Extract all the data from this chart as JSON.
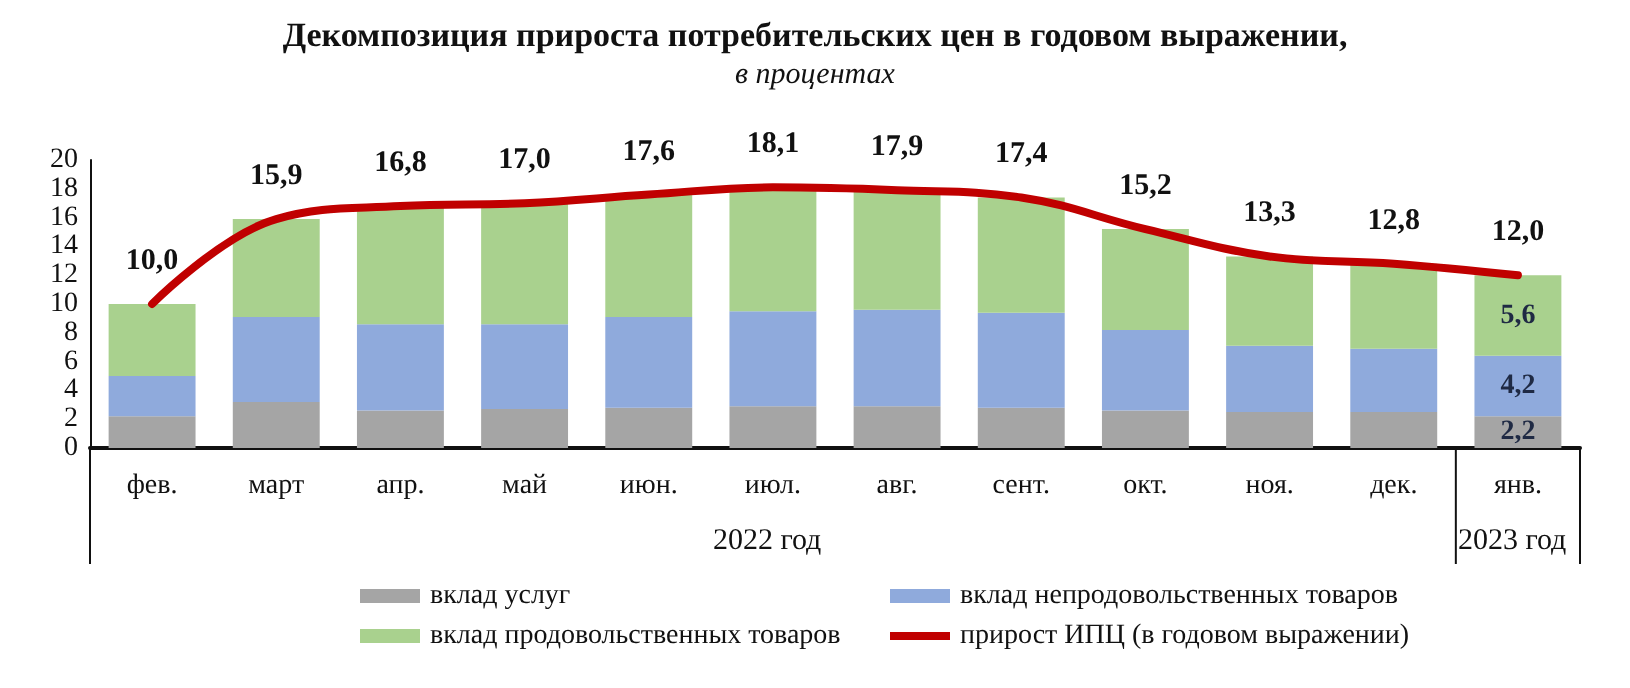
{
  "chart_data": {
    "type": "bar",
    "title": "Декомпозиция прироста потребительских цен в годовом выражении,",
    "subtitle": "в процентах",
    "categories": [
      "фев.",
      "март",
      "апр.",
      "май",
      "июн.",
      "июл.",
      "авг.",
      "сент.",
      "окт.",
      "ноя.",
      "дек.",
      "янв."
    ],
    "stacked": true,
    "series": [
      {
        "name": "вклад услуг",
        "color": "#a5a5a5",
        "values": [
          2.2,
          3.2,
          2.6,
          2.7,
          2.8,
          2.9,
          2.9,
          2.8,
          2.6,
          2.5,
          2.5,
          2.2
        ],
        "value_labels": [
          null,
          null,
          null,
          null,
          null,
          null,
          null,
          null,
          null,
          null,
          null,
          "2,2"
        ]
      },
      {
        "name": "вклад непродовольственных товаров",
        "color": "#8faadc",
        "values": [
          2.8,
          5.9,
          6.0,
          5.9,
          6.3,
          6.6,
          6.7,
          6.6,
          5.6,
          4.6,
          4.4,
          4.2
        ],
        "value_labels": [
          null,
          null,
          null,
          null,
          null,
          null,
          null,
          null,
          null,
          null,
          null,
          "4,2"
        ]
      },
      {
        "name": "вклад продовольственных товаров",
        "color": "#a9d18e",
        "values": [
          5.0,
          6.8,
          8.2,
          8.4,
          8.5,
          8.6,
          8.3,
          8.0,
          7.0,
          6.2,
          5.9,
          5.6
        ],
        "value_labels": [
          null,
          null,
          null,
          null,
          null,
          null,
          null,
          null,
          null,
          null,
          null,
          "5,6"
        ]
      },
      {
        "name": "прирост ИПЦ (в годовом выражении)",
        "type": "line",
        "color": "#c00000",
        "values": [
          10.0,
          15.9,
          16.8,
          17.0,
          17.6,
          18.1,
          17.9,
          17.4,
          15.2,
          13.3,
          12.8,
          12.0
        ],
        "value_labels": [
          "10,0",
          "15,9",
          "16,8",
          "17,0",
          "17,6",
          "18,1",
          "17,9",
          "17,4",
          "15,2",
          "13,3",
          "12,8",
          "12,0"
        ]
      }
    ],
    "ylim": [
      0,
      20
    ],
    "yticks": [
      0,
      2,
      4,
      6,
      8,
      10,
      12,
      14,
      16,
      18,
      20
    ],
    "grid": false,
    "legend": "bottom",
    "marker": "none",
    "line_style": "solid",
    "annotations": [
      "2022 год",
      "2023 год"
    ]
  }
}
